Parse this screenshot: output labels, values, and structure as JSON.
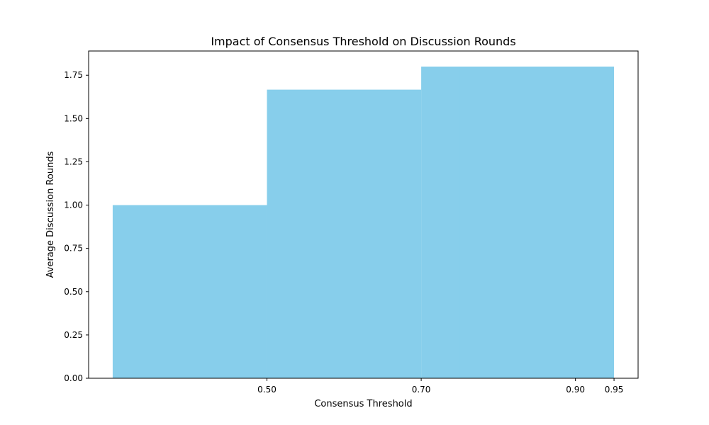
{
  "chart_data": {
    "type": "bar",
    "title": "Impact of Consensus Threshold on Discussion Rounds",
    "xlabel": "Consensus Threshold",
    "ylabel": "Average Discussion Rounds",
    "categories": [
      "0.50",
      "0.70",
      "0.90",
      "0.95"
    ],
    "x": [
      0.5,
      0.7,
      0.9,
      0.95
    ],
    "values": [
      1.0,
      1.6667,
      1.8,
      1.8
    ],
    "bar_width": 0.2,
    "bar_align": "edge-right",
    "xticks": [
      "0.50",
      "0.70",
      "0.90",
      "0.95"
    ],
    "xlim": [
      0.2688,
      0.9812
    ],
    "ylim": [
      0,
      1.89
    ],
    "yticks": [
      "0.00",
      "0.25",
      "0.50",
      "0.75",
      "1.00",
      "1.25",
      "1.50",
      "1.75"
    ],
    "ytick_values": [
      0,
      0.25,
      0.5,
      0.75,
      1.0,
      1.25,
      1.5,
      1.75
    ],
    "grid": false,
    "legend": "none",
    "bar_color": "#87CEEB"
  }
}
